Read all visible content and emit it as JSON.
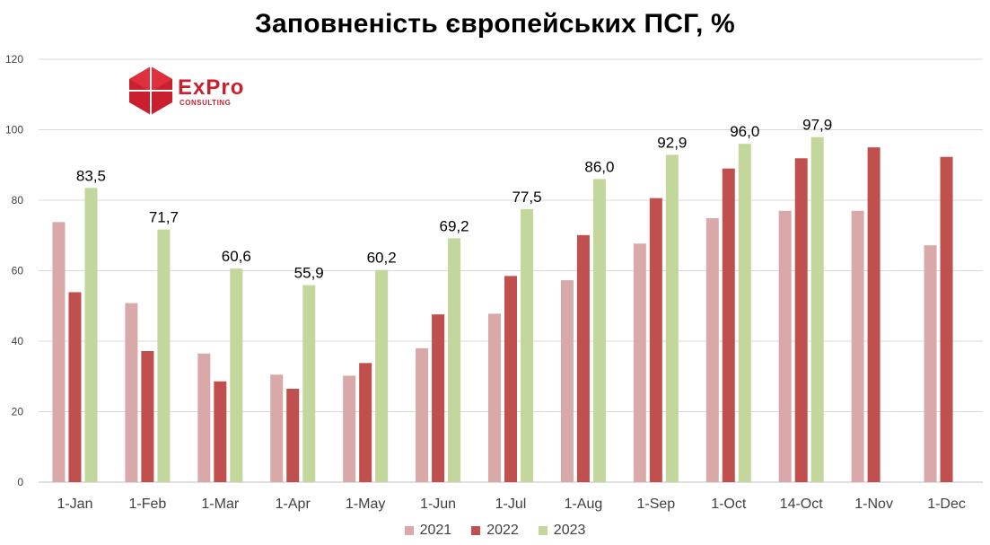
{
  "chart_data": {
    "type": "bar",
    "title": "Заповненість європейських ПСГ, %",
    "xlabel": "",
    "ylabel": "",
    "ylim": [
      0,
      120
    ],
    "yticks": [
      0,
      20,
      40,
      60,
      80,
      100,
      120
    ],
    "grid": true,
    "legend_position": "bottom",
    "categories": [
      "1-Jan",
      "1-Feb",
      "1-Mar",
      "1-Apr",
      "1-May",
      "1-Jun",
      "1-Jul",
      "1-Aug",
      "1-Sep",
      "1-Oct",
      "14-Oct",
      "1-Nov",
      "1-Dec"
    ],
    "series": [
      {
        "name": "2021",
        "color": "#d9a9a9",
        "values": [
          73.8,
          50.8,
          36.5,
          30.5,
          30.2,
          38.0,
          47.8,
          57.3,
          67.7,
          74.9,
          77.0,
          77.0,
          67.2
        ]
      },
      {
        "name": "2022",
        "color": "#c0504d",
        "values": [
          53.9,
          37.2,
          28.6,
          26.5,
          33.8,
          47.6,
          58.5,
          70.1,
          80.6,
          89.0,
          91.9,
          95.0,
          92.3
        ]
      },
      {
        "name": "2023",
        "color": "#c3d69b",
        "values": [
          83.5,
          71.7,
          60.6,
          55.9,
          60.2,
          69.2,
          77.5,
          86.0,
          92.9,
          96.0,
          97.9,
          null,
          null
        ]
      }
    ],
    "data_labels": {
      "series": "2023",
      "labels": [
        "83,5",
        "71,7",
        "60,6",
        "55,9",
        "60,2",
        "69,2",
        "77,5",
        "86,0",
        "92,9",
        "96,0",
        "97,9",
        "",
        ""
      ]
    }
  },
  "logo": {
    "text": "ExPro",
    "subtext": "CONSULTING",
    "color": "#cc1f2d"
  }
}
